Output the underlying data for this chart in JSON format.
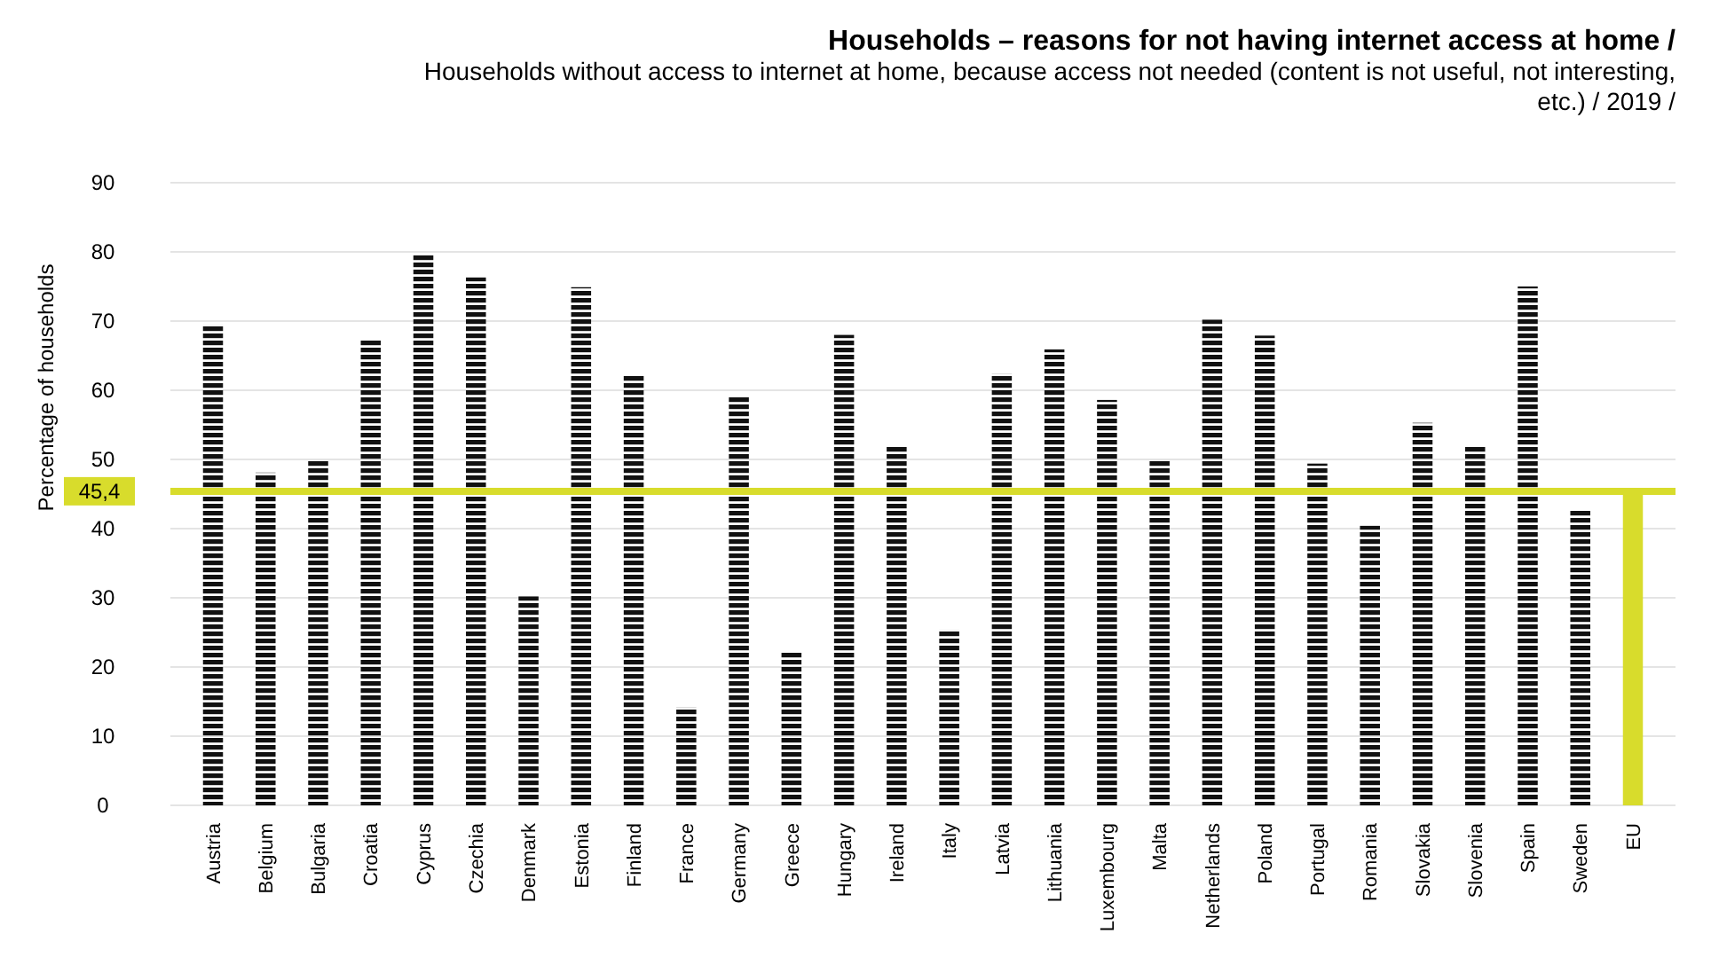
{
  "chart_data": {
    "type": "bar",
    "title": "Households – reasons for not having internet access at home /",
    "subtitle": "Households without access to internet at home, because access not needed (content is not useful, not interesting, etc.) / 2019 /",
    "ylabel": "Percentage of households",
    "categories": [
      "Austria",
      "Belgium",
      "Bulgaria",
      "Croatia",
      "Cyprus",
      "Czechia",
      "Denmark",
      "Estonia",
      "Finland",
      "France",
      "Germany",
      "Greece",
      "Hungary",
      "Ireland",
      "Italy",
      "Latvia",
      "Lithuania",
      "Luxembourg",
      "Malta",
      "Netherlands",
      "Poland",
      "Portugal",
      "Romania",
      "Slovakia",
      "Slovenia",
      "Spain",
      "Sweden",
      "EU"
    ],
    "values": [
      69.5,
      48.1,
      49.9,
      67.2,
      79.7,
      76.3,
      30.2,
      74.9,
      62.3,
      14.2,
      59.0,
      22.3,
      68.0,
      51.9,
      25.4,
      62.4,
      65.9,
      58.6,
      49.8,
      70.2,
      67.9,
      49.4,
      40.4,
      55.3,
      51.9,
      75.0,
      42.6,
      45.4
    ],
    "colors": [
      "#111111",
      "#111111",
      "#111111",
      "#111111",
      "#111111",
      "#111111",
      "#111111",
      "#111111",
      "#111111",
      "#111111",
      "#111111",
      "#111111",
      "#111111",
      "#111111",
      "#111111",
      "#111111",
      "#111111",
      "#111111",
      "#111111",
      "#111111",
      "#111111",
      "#111111",
      "#111111",
      "#111111",
      "#111111",
      "#111111",
      "#111111",
      "#d8dc2c"
    ],
    "ylim": [
      0,
      90
    ],
    "yticks": [
      0,
      10,
      20,
      30,
      40,
      50,
      60,
      70,
      80,
      90
    ],
    "grid": "y",
    "ref_lines": [
      {
        "axis": "y",
        "value": 45.4,
        "label": "45,4",
        "color": "#d8dc2c"
      }
    ]
  }
}
